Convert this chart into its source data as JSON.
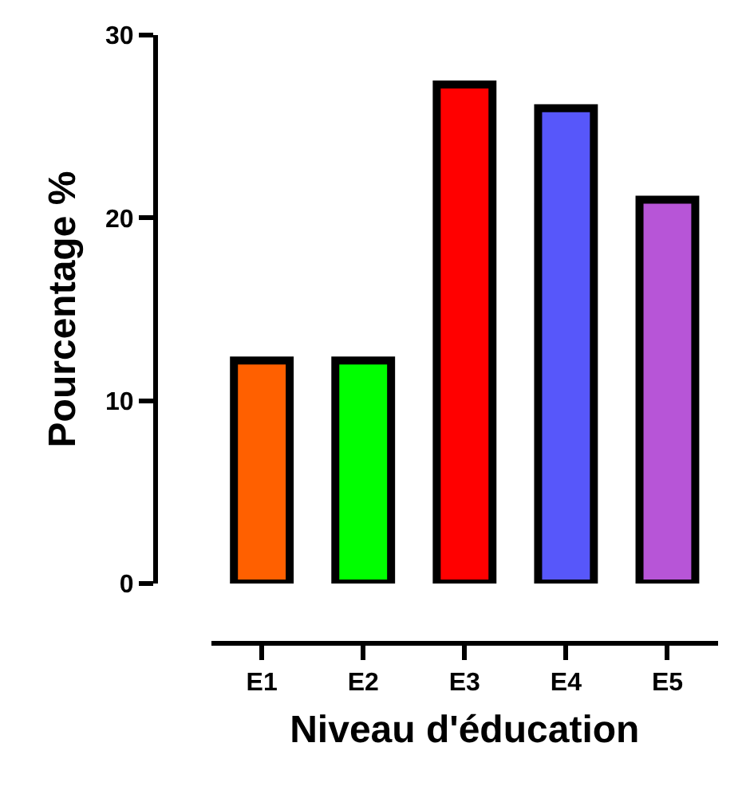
{
  "chart_data": {
    "type": "bar",
    "xlabel": "Niveau d'éducation",
    "ylabel": "Pourcentage %",
    "categories": [
      "E1",
      "E2",
      "E3",
      "E4",
      "E5"
    ],
    "values": [
      12.2,
      12.2,
      27.3,
      26.0,
      21.0
    ],
    "colors": [
      "#ff6000",
      "#00ff00",
      "#ff0000",
      "#5757fa",
      "#b755d7"
    ],
    "ylim": [
      0,
      30
    ],
    "yticks": [
      0,
      10,
      20,
      30
    ]
  }
}
